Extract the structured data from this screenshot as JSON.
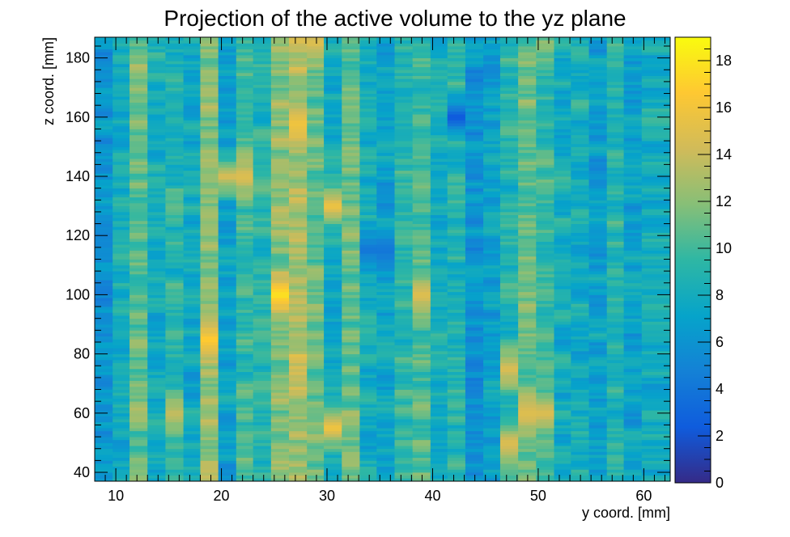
{
  "chart_data": {
    "type": "heatmap",
    "title": "Projection of the active volume to the yz plane",
    "xlabel": "y coord. [mm]",
    "ylabel": "z coord. [mm]",
    "xlim": [
      8,
      62.5
    ],
    "ylim": [
      37,
      187
    ],
    "x_ticks": [
      10,
      20,
      30,
      40,
      50,
      60
    ],
    "y_ticks": [
      40,
      60,
      80,
      100,
      120,
      140,
      160,
      180
    ],
    "colorbar": {
      "range": [
        0,
        19
      ],
      "ticks": [
        0,
        2,
        4,
        6,
        8,
        10,
        12,
        14,
        16,
        18
      ],
      "palette": [
        "#352a87",
        "#0f5cdd",
        "#1481d6",
        "#06a4ca",
        "#2eb7a4",
        "#87bf77",
        "#d1bb59",
        "#fec832",
        "#f9fb0e"
      ]
    },
    "x_bins": [
      8.0,
      9.7,
      11.3,
      13.0,
      14.7,
      16.4,
      18.0,
      19.7,
      21.4,
      23.0,
      24.7,
      26.4,
      28.1,
      29.7,
      31.4,
      33.1,
      34.7,
      36.4,
      38.1,
      39.8,
      41.4,
      43.1,
      44.8,
      46.4,
      48.1,
      49.8,
      51.5,
      53.1,
      54.8,
      56.5,
      58.1,
      59.8,
      62.5
    ],
    "column_means": [
      6,
      8,
      11,
      8,
      9,
      8,
      12,
      7,
      10,
      9,
      12,
      13,
      11,
      8,
      11,
      8,
      7,
      9,
      10,
      8,
      9,
      6,
      7,
      9,
      11,
      10,
      8,
      8,
      7,
      9,
      7,
      8
    ],
    "hotspots": [
      {
        "y": 25.5,
        "z": 100,
        "value": 18
      },
      {
        "y": 27.5,
        "z": 158,
        "value": 16
      },
      {
        "y": 18.8,
        "z": 85,
        "value": 17
      },
      {
        "y": 30.5,
        "z": 55,
        "value": 16
      },
      {
        "y": 30.5,
        "z": 130,
        "value": 16
      },
      {
        "y": 21.0,
        "z": 140,
        "value": 15
      },
      {
        "y": 29.0,
        "z": 185,
        "value": 15
      },
      {
        "y": 39.0,
        "z": 100,
        "value": 15
      },
      {
        "y": 47.5,
        "z": 50,
        "value": 15
      },
      {
        "y": 47.5,
        "z": 75,
        "value": 15
      },
      {
        "y": 49.5,
        "z": 60,
        "value": 15
      },
      {
        "y": 15.5,
        "z": 60,
        "value": 14
      },
      {
        "y": 42.0,
        "z": 160,
        "value": 2
      },
      {
        "y": 34.5,
        "z": 115,
        "value": 4
      },
      {
        "y": 8.8,
        "z": 120,
        "value": 5
      }
    ]
  }
}
